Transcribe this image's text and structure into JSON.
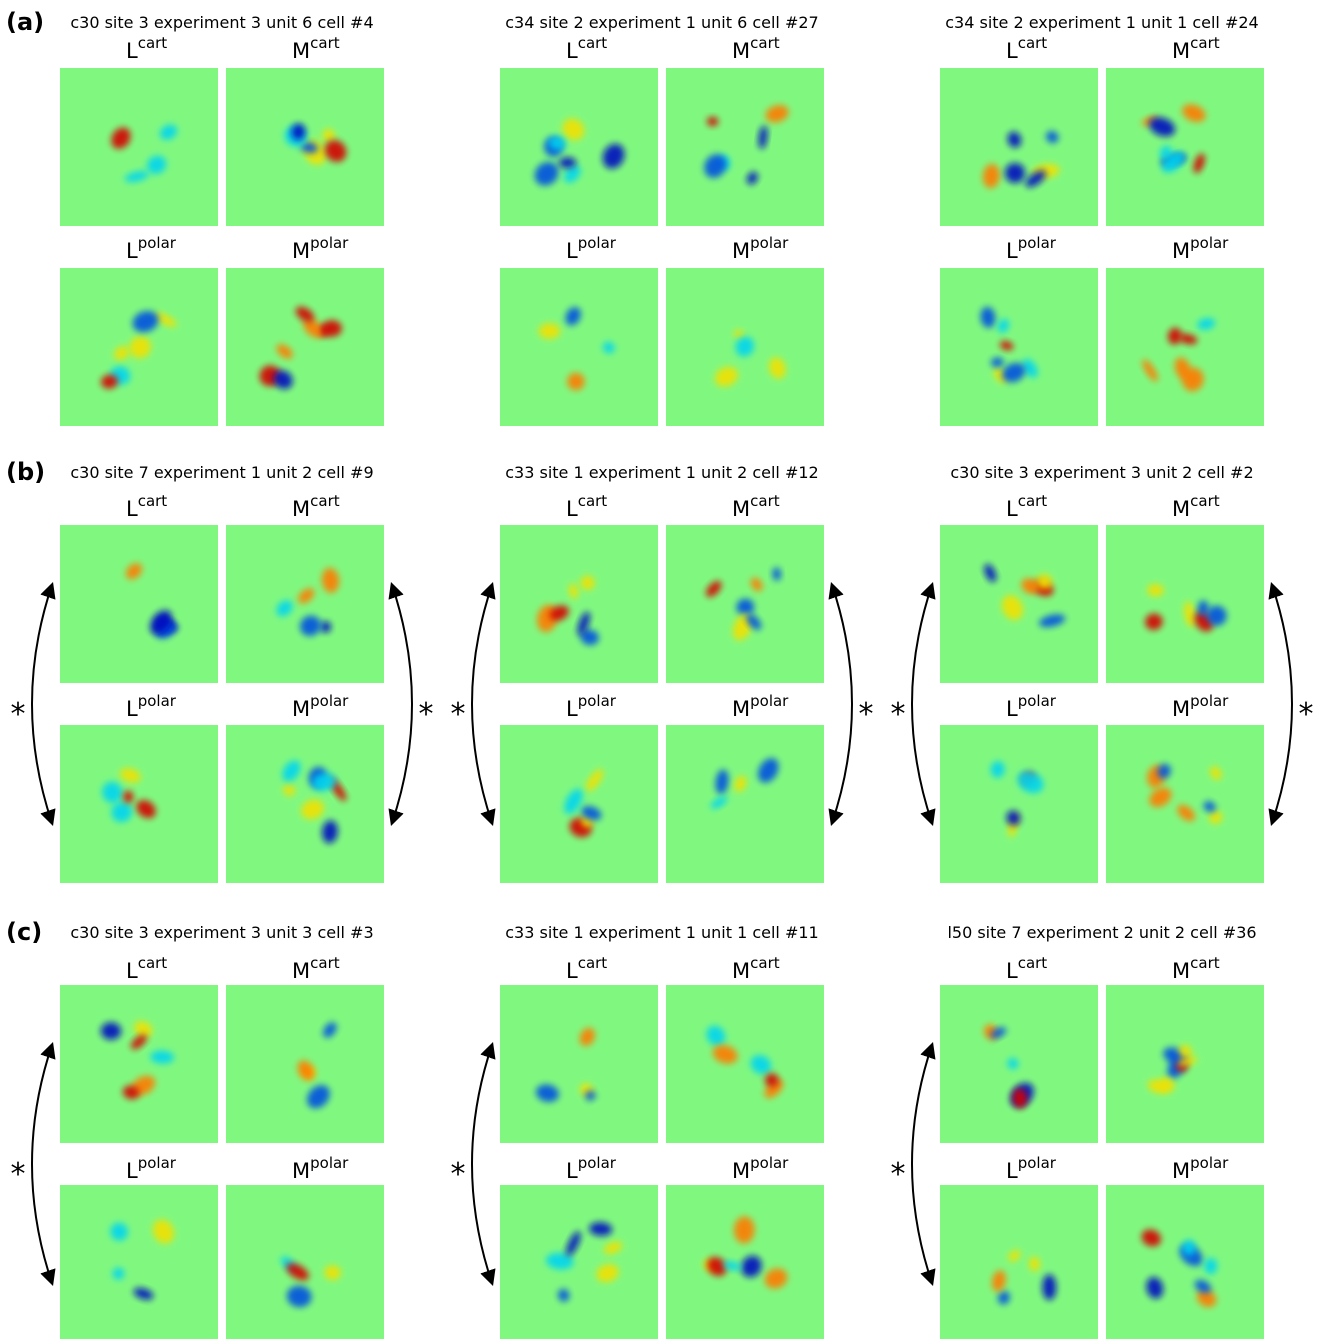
{
  "rows": [
    {
      "label": "(a)",
      "cells": [
        {
          "title": "c30 site 3 experiment 3 unit 6 cell #4",
          "panels": [
            {
              "base": "L",
              "sup": "cart"
            },
            {
              "base": "M",
              "sup": "cart"
            },
            {
              "base": "L",
              "sup": "polar"
            },
            {
              "base": "M",
              "sup": "polar"
            }
          ]
        },
        {
          "title": "c34 site 2 experiment 1 unit 6 cell #27",
          "panels": [
            {
              "base": "L",
              "sup": "cart"
            },
            {
              "base": "M",
              "sup": "cart"
            },
            {
              "base": "L",
              "sup": "polar"
            },
            {
              "base": "M",
              "sup": "polar"
            }
          ]
        },
        {
          "title": "c34 site 2 experiment 1 unit 1 cell #24",
          "panels": [
            {
              "base": "L",
              "sup": "cart"
            },
            {
              "base": "M",
              "sup": "cart"
            },
            {
              "base": "L",
              "sup": "polar"
            },
            {
              "base": "M",
              "sup": "polar"
            }
          ]
        }
      ]
    },
    {
      "label": "(b)",
      "cells": [
        {
          "title": "c30 site 7 experiment 1 unit 2 cell #9",
          "panels": [
            {
              "base": "L",
              "sup": "cart"
            },
            {
              "base": "M",
              "sup": "cart"
            },
            {
              "base": "L",
              "sup": "polar"
            },
            {
              "base": "M",
              "sup": "polar"
            }
          ],
          "left_mark": "*",
          "right_mark": "*"
        },
        {
          "title": "c33 site 1 experiment 1 unit 2 cell #12",
          "panels": [
            {
              "base": "L",
              "sup": "cart"
            },
            {
              "base": "M",
              "sup": "cart"
            },
            {
              "base": "L",
              "sup": "polar"
            },
            {
              "base": "M",
              "sup": "polar"
            }
          ],
          "left_mark": "*",
          "right_mark": "*"
        },
        {
          "title": "c30 site 3 experiment 3 unit 2 cell #2",
          "panels": [
            {
              "base": "L",
              "sup": "cart"
            },
            {
              "base": "M",
              "sup": "cart"
            },
            {
              "base": "L",
              "sup": "polar"
            },
            {
              "base": "M",
              "sup": "polar"
            }
          ],
          "left_mark": "*",
          "right_mark": "*"
        }
      ]
    },
    {
      "label": "(c)",
      "cells": [
        {
          "title": "c30 site 3 experiment 3 unit 3 cell #3",
          "panels": [
            {
              "base": "L",
              "sup": "cart"
            },
            {
              "base": "M",
              "sup": "cart"
            },
            {
              "base": "L",
              "sup": "polar"
            },
            {
              "base": "M",
              "sup": "polar"
            }
          ],
          "left_mark": "*"
        },
        {
          "title": "c33 site 1 experiment 1 unit 1 cell #11",
          "panels": [
            {
              "base": "L",
              "sup": "cart"
            },
            {
              "base": "M",
              "sup": "cart"
            },
            {
              "base": "L",
              "sup": "polar"
            },
            {
              "base": "M",
              "sup": "polar"
            }
          ],
          "left_mark": "*"
        },
        {
          "title": "l50 site 7 experiment 2 unit 2 cell #36",
          "panels": [
            {
              "base": "L",
              "sup": "cart"
            },
            {
              "base": "M",
              "sup": "cart"
            },
            {
              "base": "L",
              "sup": "polar"
            },
            {
              "base": "M",
              "sup": "polar"
            }
          ],
          "left_mark": "*"
        }
      ]
    }
  ]
}
